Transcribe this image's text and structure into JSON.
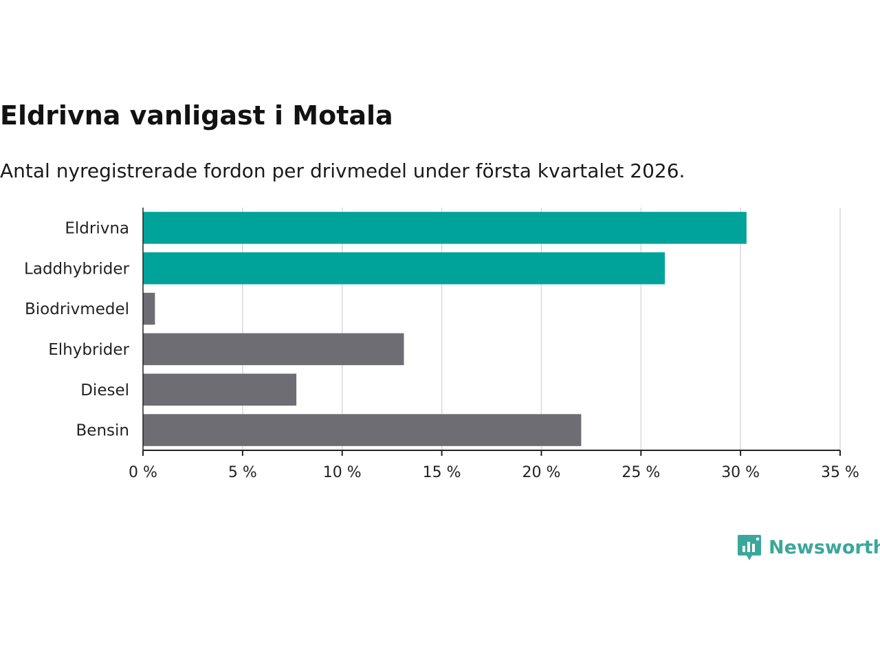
{
  "header": {
    "title": "Eldrivna vanligast i Motala",
    "subtitle": "Antal nyregistrerade fordon per drivmedel under första kvartalet 2026."
  },
  "chart_data": {
    "type": "bar",
    "orientation": "horizontal",
    "title": "Eldrivna vanligast i Motala",
    "subtitle": "Antal nyregistrerade fordon per drivmedel under första kvartalet 2026.",
    "xlabel": "",
    "ylabel": "",
    "unit_suffix": " %",
    "xlim": [
      0,
      35
    ],
    "xticks": [
      0,
      5,
      10,
      15,
      20,
      25,
      30,
      35
    ],
    "xtick_labels": [
      "0 %",
      "5 %",
      "10 %",
      "15 %",
      "20 %",
      "25 %",
      "30 %",
      "35 %"
    ],
    "grid": true,
    "categories": [
      "Eldrivna",
      "Laddhybrider",
      "Biodrivmedel",
      "Elhybrider",
      "Diesel",
      "Bensin"
    ],
    "values": [
      30.3,
      26.2,
      0.6,
      13.1,
      7.7,
      22.0
    ],
    "highlighted": [
      true,
      true,
      false,
      false,
      false,
      false
    ]
  },
  "colors": {
    "highlight": "#00a39a",
    "default": "#6e6d73",
    "grid": "#d9d9d9",
    "axis": "#222222",
    "brand": "#3aa79b"
  },
  "brand": {
    "name": "Newsworthy",
    "icon": "newsworthy-chart-icon"
  }
}
